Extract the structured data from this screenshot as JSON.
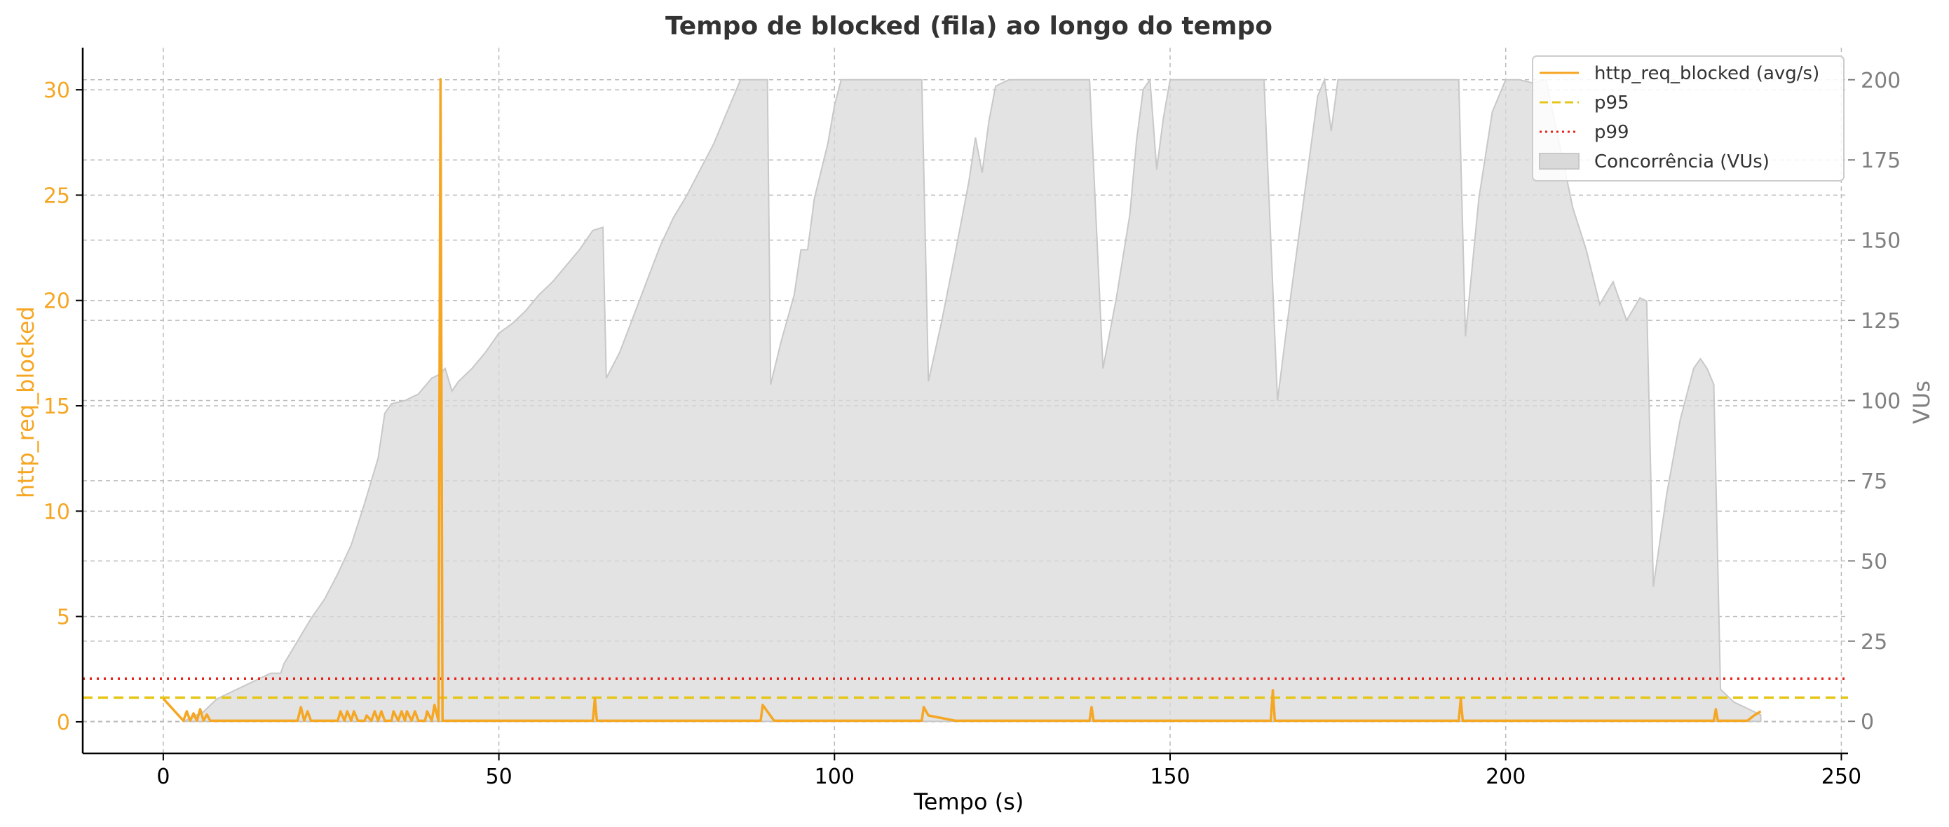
{
  "chart_data": {
    "type": "line",
    "title": "Tempo de blocked (fila) ao longo do tempo",
    "xlabel": "Tempo (s)",
    "ylabel_left": "http_req_blocked",
    "ylabel_right": "VUs",
    "xlim": [
      -12,
      251
    ],
    "ylim_left": [
      -1.5,
      32
    ],
    "ylim_right": [
      -10,
      210
    ],
    "x_ticks": [
      0,
      50,
      100,
      150,
      200,
      250
    ],
    "y_left_ticks": [
      0,
      5,
      10,
      15,
      20,
      25,
      30
    ],
    "y_right_ticks": [
      0,
      25,
      50,
      75,
      100,
      125,
      150,
      175,
      200
    ],
    "grid": true,
    "legend_position": "top-right",
    "colors": {
      "blocked": "#f5a623",
      "p95": "#e6c619",
      "p99": "#e8231b",
      "vus_fill": "#d9d9d9",
      "vus_edge": "#c8c8c8",
      "left_axis": "#f5a623",
      "right_axis": "#808080",
      "grid": "#bbbbbb"
    },
    "series": [
      {
        "name": "http_req_blocked (avg/s)",
        "axis": "left",
        "style": "solid",
        "points": [
          [
            0,
            1.1
          ],
          [
            3,
            0.05
          ],
          [
            3.5,
            0.5
          ],
          [
            4,
            0.05
          ],
          [
            4.5,
            0.4
          ],
          [
            5,
            0.05
          ],
          [
            5.5,
            0.6
          ],
          [
            6,
            0.05
          ],
          [
            6.5,
            0.35
          ],
          [
            7,
            0.05
          ],
          [
            20,
            0.05
          ],
          [
            20.5,
            0.7
          ],
          [
            21,
            0.05
          ],
          [
            21.5,
            0.5
          ],
          [
            22,
            0.05
          ],
          [
            26,
            0.05
          ],
          [
            26.4,
            0.5
          ],
          [
            27,
            0.05
          ],
          [
            27.4,
            0.5
          ],
          [
            28,
            0.05
          ],
          [
            28.4,
            0.5
          ],
          [
            29,
            0.05
          ],
          [
            30,
            0.05
          ],
          [
            30.3,
            0.3
          ],
          [
            31,
            0.05
          ],
          [
            31.5,
            0.5
          ],
          [
            32,
            0.05
          ],
          [
            32.5,
            0.5
          ],
          [
            33,
            0.05
          ],
          [
            34,
            0.05
          ],
          [
            34.3,
            0.5
          ],
          [
            35,
            0.05
          ],
          [
            35.5,
            0.5
          ],
          [
            36,
            0.05
          ],
          [
            36.3,
            0.5
          ],
          [
            37,
            0.05
          ],
          [
            37.5,
            0.5
          ],
          [
            38,
            0.05
          ],
          [
            39,
            0.05
          ],
          [
            39.3,
            0.5
          ],
          [
            40,
            0.05
          ],
          [
            40.4,
            0.8
          ],
          [
            41,
            0.05
          ],
          [
            41.3,
            30.5
          ],
          [
            41.6,
            0.05
          ],
          [
            64,
            0.05
          ],
          [
            64.3,
            1.1
          ],
          [
            64.6,
            0.05
          ],
          [
            89,
            0.05
          ],
          [
            89.3,
            0.8
          ],
          [
            91,
            0.05
          ],
          [
            113,
            0.05
          ],
          [
            113.3,
            0.7
          ],
          [
            114,
            0.3
          ],
          [
            118,
            0.05
          ],
          [
            138,
            0.05
          ],
          [
            138.3,
            0.7
          ],
          [
            138.6,
            0.05
          ],
          [
            165,
            0.05
          ],
          [
            165.3,
            1.5
          ],
          [
            165.6,
            0.05
          ],
          [
            193,
            0.05
          ],
          [
            193.3,
            1.1
          ],
          [
            193.6,
            0.05
          ],
          [
            231,
            0.05
          ],
          [
            231.3,
            0.6
          ],
          [
            231.6,
            0.05
          ],
          [
            236,
            0.05
          ],
          [
            237,
            0.3
          ],
          [
            238,
            0.5
          ]
        ]
      },
      {
        "name": "p95",
        "axis": "left",
        "style": "dashed",
        "value": 1.15
      },
      {
        "name": "p99",
        "axis": "left",
        "style": "dotted",
        "value": 2.05
      },
      {
        "name": "Concorrência (VUs)",
        "axis": "right",
        "style": "area",
        "points": [
          [
            3,
            0
          ],
          [
            6,
            3
          ],
          [
            8,
            7
          ],
          [
            10,
            9
          ],
          [
            12,
            11
          ],
          [
            14,
            13
          ],
          [
            16,
            15
          ],
          [
            17.5,
            15
          ],
          [
            18,
            18
          ],
          [
            20,
            25
          ],
          [
            22,
            32
          ],
          [
            24,
            38
          ],
          [
            26,
            46
          ],
          [
            28,
            55
          ],
          [
            30,
            68
          ],
          [
            32,
            82
          ],
          [
            33,
            96
          ],
          [
            34,
            99
          ],
          [
            36,
            100
          ],
          [
            38,
            102
          ],
          [
            40,
            107
          ],
          [
            41,
            108
          ],
          [
            42,
            110
          ],
          [
            43,
            103
          ],
          [
            44,
            106
          ],
          [
            46,
            110
          ],
          [
            48,
            115
          ],
          [
            50,
            121
          ],
          [
            52,
            124
          ],
          [
            54,
            128
          ],
          [
            56,
            133
          ],
          [
            58,
            137
          ],
          [
            60,
            142
          ],
          [
            62,
            147
          ],
          [
            64,
            153
          ],
          [
            65.5,
            154
          ],
          [
            66,
            107
          ],
          [
            68,
            115
          ],
          [
            70,
            126
          ],
          [
            72,
            137
          ],
          [
            74,
            148
          ],
          [
            76,
            157
          ],
          [
            78,
            164
          ],
          [
            80,
            172
          ],
          [
            82,
            180
          ],
          [
            84,
            190
          ],
          [
            86,
            200
          ],
          [
            88,
            200
          ],
          [
            90,
            200
          ],
          [
            90.5,
            105
          ],
          [
            92,
            118
          ],
          [
            94,
            133
          ],
          [
            95,
            147
          ],
          [
            96,
            147
          ],
          [
            97,
            163
          ],
          [
            99,
            180
          ],
          [
            100,
            192
          ],
          [
            101,
            200
          ],
          [
            102,
            200
          ],
          [
            104,
            200
          ],
          [
            106,
            200
          ],
          [
            108,
            200
          ],
          [
            110,
            200
          ],
          [
            112,
            200
          ],
          [
            113,
            200
          ],
          [
            114,
            106
          ],
          [
            116,
            125
          ],
          [
            118,
            146
          ],
          [
            120,
            168
          ],
          [
            121,
            182
          ],
          [
            122,
            171
          ],
          [
            123,
            187
          ],
          [
            124,
            198
          ],
          [
            126,
            200
          ],
          [
            128,
            200
          ],
          [
            130,
            200
          ],
          [
            132,
            200
          ],
          [
            134,
            200
          ],
          [
            136,
            200
          ],
          [
            138,
            200
          ],
          [
            140,
            110
          ],
          [
            142,
            132
          ],
          [
            144,
            158
          ],
          [
            145,
            181
          ],
          [
            146,
            197
          ],
          [
            147,
            200
          ],
          [
            148,
            172
          ],
          [
            149,
            188
          ],
          [
            150,
            200
          ],
          [
            152,
            200
          ],
          [
            154,
            200
          ],
          [
            156,
            200
          ],
          [
            158,
            200
          ],
          [
            160,
            200
          ],
          [
            162,
            200
          ],
          [
            164,
            200
          ],
          [
            166,
            100
          ],
          [
            168,
            133
          ],
          [
            170,
            164
          ],
          [
            172,
            195
          ],
          [
            173,
            200
          ],
          [
            174,
            184
          ],
          [
            175,
            200
          ],
          [
            177,
            200
          ],
          [
            179,
            200
          ],
          [
            181,
            200
          ],
          [
            183,
            200
          ],
          [
            185,
            200
          ],
          [
            187,
            200
          ],
          [
            189,
            200
          ],
          [
            191,
            200
          ],
          [
            193,
            200
          ],
          [
            194,
            120
          ],
          [
            196,
            163
          ],
          [
            198,
            190
          ],
          [
            200,
            200
          ],
          [
            202,
            200
          ],
          [
            204,
            199
          ],
          [
            206,
            200
          ],
          [
            208,
            180
          ],
          [
            210,
            160
          ],
          [
            212,
            147
          ],
          [
            214,
            130
          ],
          [
            216,
            137
          ],
          [
            218,
            125
          ],
          [
            220,
            132
          ],
          [
            221,
            131
          ],
          [
            222,
            42
          ],
          [
            224,
            71
          ],
          [
            226,
            94
          ],
          [
            228,
            110
          ],
          [
            229,
            113
          ],
          [
            230,
            110
          ],
          [
            231,
            105
          ],
          [
            232,
            10
          ],
          [
            234,
            6
          ],
          [
            236,
            4
          ],
          [
            238,
            2
          ]
        ]
      }
    ]
  }
}
